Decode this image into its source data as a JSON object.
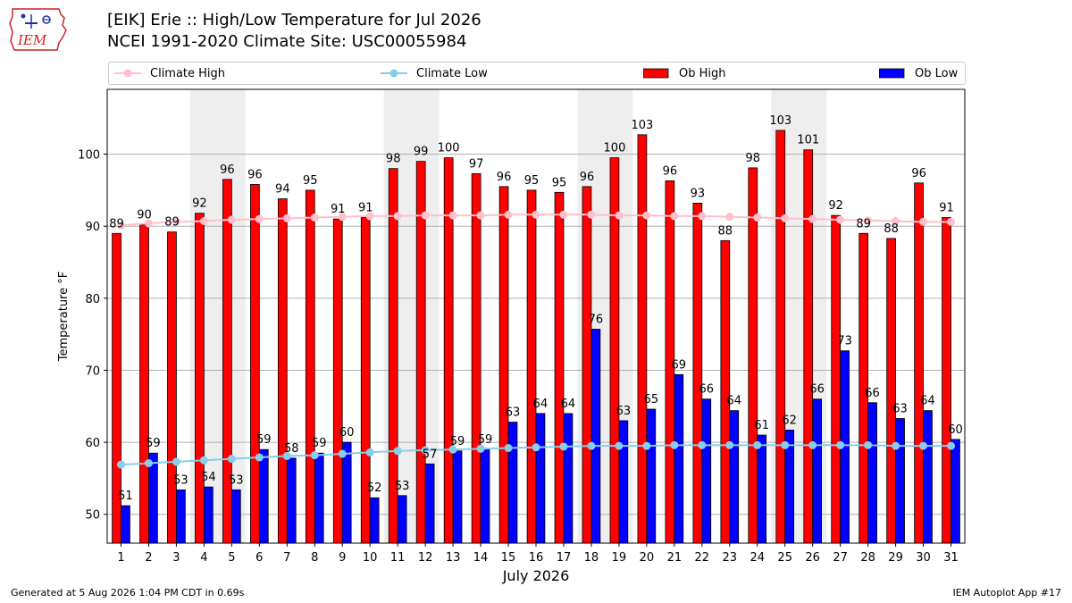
{
  "header": {
    "title_line1": "[EIK] Erie :: High/Low Temperature for Jul 2026",
    "title_line2": "NCEI 1991-2020 Climate Site: USC00055984",
    "logo_text": "IEM"
  },
  "legend": {
    "items": [
      "Climate High",
      "Climate Low",
      "Ob High",
      "Ob Low"
    ]
  },
  "footer": {
    "left": "Generated at 5 Aug 2026 1:04 PM CDT in 0.69s",
    "right": "IEM Autoplot App #17"
  },
  "colors": {
    "ob_high": "#ff0000",
    "ob_low": "#0000ff",
    "climate_high": "#ffc0cb",
    "climate_low": "#87ceeb",
    "weekend_shade": "#eeeeee"
  },
  "chart_data": {
    "type": "bar",
    "xlabel": "July 2026",
    "ylabel": "Temperature °F",
    "ylim": [
      46,
      109
    ],
    "yticks": [
      50,
      60,
      70,
      80,
      90,
      100
    ],
    "grid": "horizontal",
    "legend_position": "top",
    "categories": [
      "1",
      "2",
      "3",
      "4",
      "5",
      "6",
      "7",
      "8",
      "9",
      "10",
      "11",
      "12",
      "13",
      "14",
      "15",
      "16",
      "17",
      "18",
      "19",
      "20",
      "21",
      "22",
      "23",
      "24",
      "25",
      "26",
      "27",
      "28",
      "29",
      "30",
      "31"
    ],
    "shaded_days": [
      4,
      5,
      11,
      12,
      18,
      19,
      25,
      26
    ],
    "series": [
      {
        "name": "Ob High",
        "kind": "bar",
        "values": [
          89,
          90,
          89,
          92,
          96,
          96,
          94,
          95,
          91,
          91,
          98,
          99,
          100,
          97,
          96,
          95,
          95,
          96,
          100,
          103,
          96,
          93,
          88,
          98,
          103,
          101,
          92,
          89,
          88,
          96,
          91
        ],
        "heights": [
          89,
          90.2,
          89.2,
          91.8,
          96.5,
          95.8,
          93.8,
          95,
          91,
          91.2,
          98,
          99,
          99.5,
          97.3,
          95.5,
          95,
          94.7,
          95.5,
          99.5,
          102.7,
          96.3,
          93.2,
          88,
          98.1,
          103.3,
          100.6,
          91.5,
          89,
          88.3,
          96,
          91.2
        ]
      },
      {
        "name": "Ob Low",
        "kind": "bar",
        "values": [
          51,
          59,
          53,
          54,
          53,
          59,
          58,
          59,
          60,
          52,
          53,
          57,
          59,
          59,
          63,
          64,
          64,
          76,
          63,
          65,
          69,
          66,
          64,
          61,
          62,
          66,
          73,
          66,
          63,
          64,
          60
        ],
        "heights": [
          51.2,
          58.5,
          53.4,
          53.8,
          53.4,
          59,
          57.8,
          58.5,
          60,
          52.3,
          52.6,
          57,
          58.8,
          59,
          62.8,
          64,
          64,
          75.7,
          63,
          64.6,
          69.4,
          66,
          64.4,
          61,
          61.7,
          66,
          72.7,
          65.5,
          63.3,
          64.4,
          60.4
        ]
      },
      {
        "name": "Climate High",
        "kind": "line",
        "values": [
          90.1,
          90.4,
          90.6,
          90.7,
          90.9,
          91.0,
          91.1,
          91.2,
          91.3,
          91.4,
          91.4,
          91.5,
          91.5,
          91.5,
          91.6,
          91.6,
          91.6,
          91.6,
          91.5,
          91.5,
          91.4,
          91.4,
          91.3,
          91.2,
          91.1,
          91.0,
          90.9,
          90.8,
          90.7,
          90.6,
          90.6
        ]
      },
      {
        "name": "Climate Low",
        "kind": "line",
        "values": [
          56.9,
          57.1,
          57.3,
          57.5,
          57.7,
          57.9,
          58.1,
          58.2,
          58.4,
          58.6,
          58.8,
          58.9,
          59.0,
          59.1,
          59.2,
          59.3,
          59.4,
          59.5,
          59.5,
          59.5,
          59.6,
          59.6,
          59.6,
          59.6,
          59.6,
          59.6,
          59.6,
          59.6,
          59.5,
          59.5,
          59.5
        ]
      }
    ]
  }
}
